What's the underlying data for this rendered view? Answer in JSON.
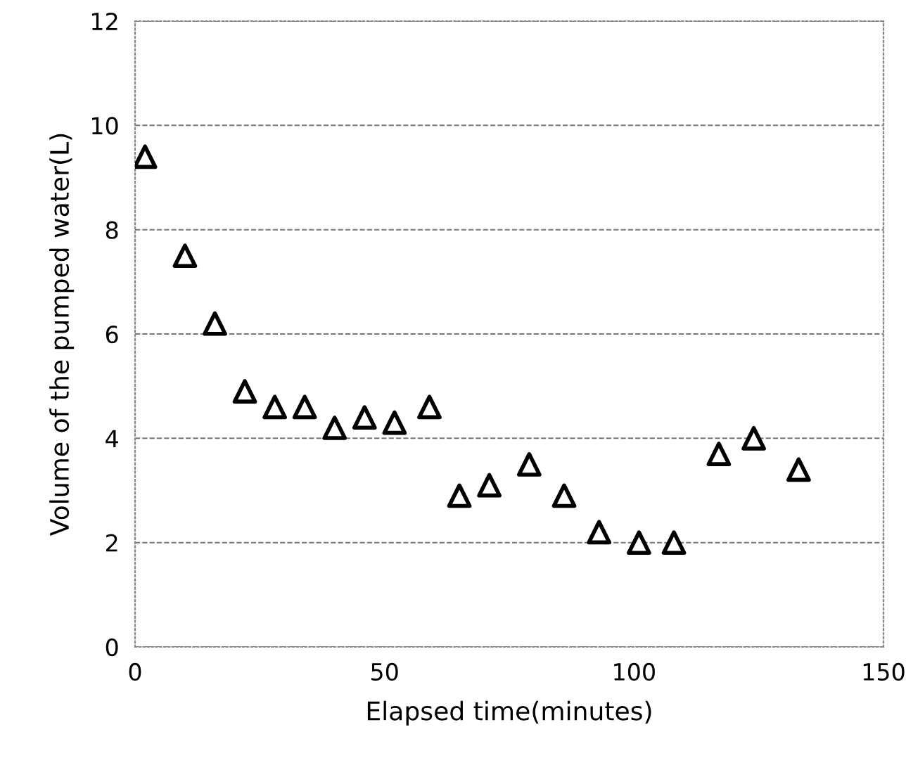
{
  "chart_data": {
    "type": "scatter",
    "xlabel": "Elapsed time(minutes)",
    "ylabel": "Volume of the pumped water(L)",
    "x": [
      2,
      10,
      16,
      22,
      28,
      34,
      40,
      46,
      52,
      59,
      65,
      71,
      79,
      86,
      93,
      101,
      108,
      117,
      124,
      133
    ],
    "values": [
      9.4,
      7.5,
      6.2,
      4.9,
      4.6,
      4.6,
      4.2,
      4.4,
      4.3,
      4.6,
      2.9,
      3.1,
      3.5,
      2.9,
      2.2,
      2.0,
      2.0,
      3.7,
      4.0,
      3.4
    ],
    "color": "#000000",
    "marker": "triangle",
    "xlim": [
      0,
      150
    ],
    "xticks": [
      0,
      50,
      100,
      150
    ],
    "ylim": [
      0,
      12
    ],
    "yticks": [
      0,
      2,
      4,
      6,
      8,
      10,
      12
    ],
    "grid": "y"
  }
}
